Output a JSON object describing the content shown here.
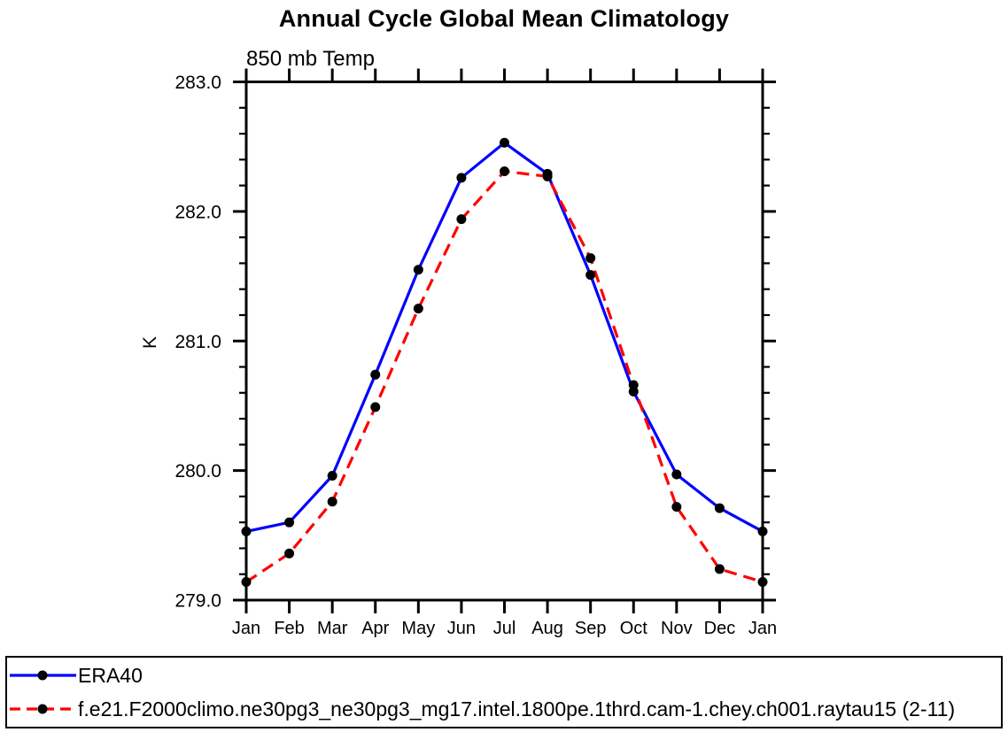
{
  "chart_data": {
    "type": "line",
    "title": "Annual Cycle Global Mean Climatology",
    "subtitle": "850 mb Temp",
    "xlabel": "",
    "ylabel": "K",
    "ylim": [
      279.0,
      283.0
    ],
    "ytick_step": 1.0,
    "ytick_labels": [
      "279.0",
      "280.0",
      "281.0",
      "282.0",
      "283.0"
    ],
    "y_minor_step": 0.2,
    "x_categories": [
      "Jan",
      "Feb",
      "Mar",
      "Apr",
      "May",
      "Jun",
      "Jul",
      "Aug",
      "Sep",
      "Oct",
      "Nov",
      "Dec",
      "Jan"
    ],
    "grid": false,
    "legend_position": "bottom box, full width",
    "axis_color": "#000000",
    "marker_color": "#000000",
    "marker_shape": "filled-circle",
    "series": [
      {
        "name": "ERA40",
        "color": "#0000ff",
        "line_style": "solid",
        "values": [
          279.53,
          279.6,
          279.96,
          280.74,
          281.55,
          282.26,
          282.53,
          282.29,
          281.51,
          280.61,
          279.97,
          279.71,
          279.53
        ]
      },
      {
        "name": "f.e21.F2000climo.ne30pg3_ne30pg3_mg17.intel.1800pe.1thrd.cam-1.chey.ch001.raytau15 (2-11)",
        "color": "#ff0000",
        "line_style": "dashed",
        "values": [
          279.14,
          279.36,
          279.76,
          280.49,
          281.25,
          281.94,
          282.31,
          282.27,
          281.64,
          280.66,
          279.72,
          279.24,
          279.14
        ]
      }
    ]
  }
}
